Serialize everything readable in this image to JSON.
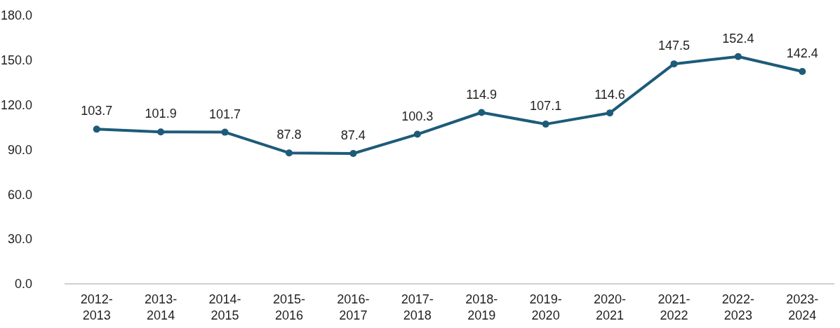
{
  "chart_data": {
    "type": "line",
    "categories": [
      "2012-2013",
      "2013-2014",
      "2014-2015",
      "2015-2016",
      "2016-2017",
      "2017-2018",
      "2018-2019",
      "2019-2020",
      "2020-2021",
      "2021-2022",
      "2022-2023",
      "2023-2024"
    ],
    "series": [
      {
        "color": "#1d5b79",
        "values": [
          103.7,
          101.9,
          101.7,
          87.8,
          87.4,
          100.3,
          114.9,
          107.1,
          114.6,
          147.5,
          152.4,
          142.4
        ]
      }
    ],
    "ylim": [
      0,
      180
    ],
    "yticks": [
      {
        "value": 0,
        "label": "0.0"
      },
      {
        "value": 30,
        "label": "30.0"
      },
      {
        "value": 60,
        "label": "60.0"
      },
      {
        "value": 90,
        "label": "90.0"
      },
      {
        "value": 120,
        "label": "120.0"
      },
      {
        "value": 150,
        "label": "150.0"
      },
      {
        "value": 180,
        "label": "180.0"
      }
    ],
    "data_labels": true,
    "marker": "circle",
    "line_style": "solid"
  }
}
